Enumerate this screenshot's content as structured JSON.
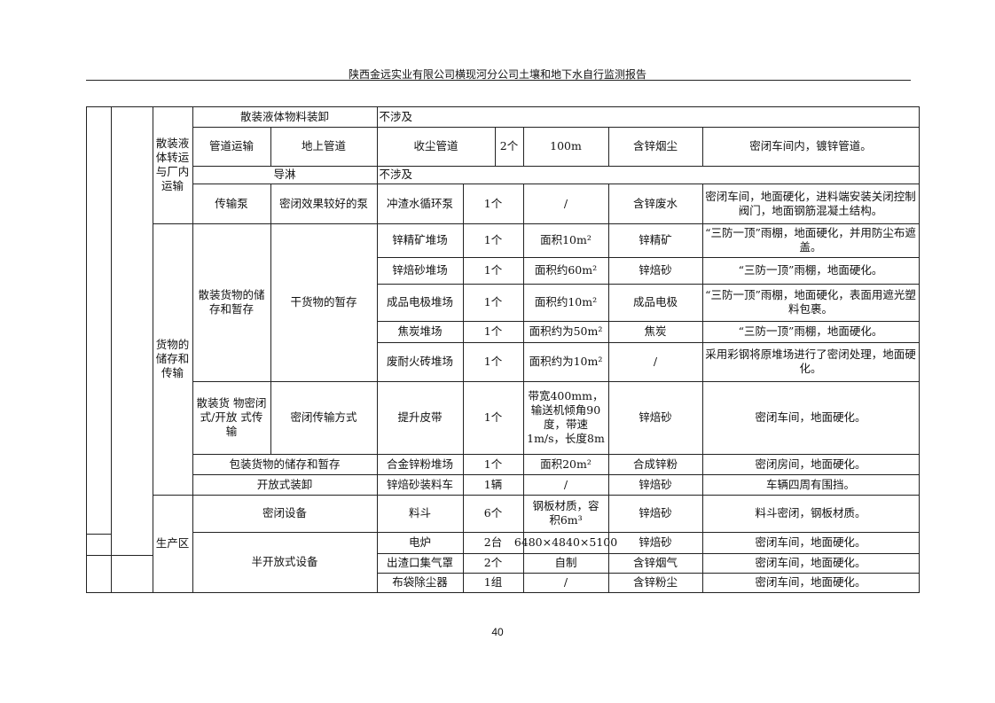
{
  "header": {
    "title": "陕西金远实业有限公司横现河分公司土壤和地下水自行监测报告"
  },
  "page_number": "40",
  "table": {
    "groups": {
      "liquid": "散装液体转运与厂内运输",
      "goods": "货物的储存和传输",
      "production": "生产区"
    },
    "r1": {
      "a": "散装液体物料装卸",
      "b": "不涉及"
    },
    "r2": {
      "a": "管道运输",
      "b": "地上管道",
      "c": "收尘管道",
      "d": "2个",
      "e": "100m",
      "f": "含锌烟尘",
      "g": "密闭车间内，镀锌管道。"
    },
    "r3": {
      "a": "导淋",
      "b": "不涉及"
    },
    "r4": {
      "a": "传输泵",
      "b": "密闭效果较好的泵",
      "c": "冲渣水循环泵",
      "d": "1个",
      "e": "/",
      "f": "含锌废水",
      "g": "密闭车间，地面硬化，进料端安装关闭控制阀门，地面钢筋混凝土结构。"
    },
    "bulk_storage": {
      "a": "散装货物的储存和暂存",
      "b": "干货物的暂存"
    },
    "r5": {
      "c": "锌精矿堆场",
      "d": "1个",
      "e": "面积10m²",
      "f": "锌精矿",
      "g": "“三防一顶”雨棚，地面硬化，并用防尘布遮盖。"
    },
    "r6": {
      "c": "锌焙砂堆场",
      "d": "1个",
      "e": "面积约60m²",
      "f": "锌焙砂",
      "g": "“三防一顶”雨棚，地面硬化。"
    },
    "r7": {
      "c": "成品电极堆场",
      "d": "1个",
      "e": "面积约10m²",
      "f": "成品电极",
      "g": "“三防一顶”雨棚，地面硬化，表面用遮光塑料包裹。"
    },
    "r8": {
      "c": "焦炭堆场",
      "d": "1个",
      "e": "面积约为50m²",
      "f": "焦炭",
      "g": "“三防一顶”雨棚，地面硬化。"
    },
    "r9": {
      "c": "废耐火砖堆场",
      "d": "1个",
      "e": "面积约为10m²",
      "f": "/",
      "g": "采用彩钢将原堆场进行了密闭处理，地面硬化。"
    },
    "r10": {
      "a": "散装货 物密闭式/开放 式传输",
      "b": "密闭传输方式",
      "c": "提升皮带",
      "d": "1个",
      "e": "带宽400mm，输送机倾角90度，带速1m/s，长度8m",
      "f": "锌焙砂",
      "g": "密闭车间，地面硬化。"
    },
    "r11": {
      "a": "包装货物的储存和暂存",
      "c": "合金锌粉堆场",
      "d": "1个",
      "e": "面积20m²",
      "f": "合成锌粉",
      "g": "密闭房间，地面硬化。"
    },
    "r12": {
      "a": "开放式装卸",
      "c": "锌焙砂装料车",
      "d": "1辆",
      "e": "/",
      "f": "锌焙砂",
      "g": "车辆四周有围挡。"
    },
    "r13": {
      "a": "密闭设备",
      "c": "料斗",
      "d": "6个",
      "e": "钢板材质，容 积6m³",
      "f": "锌焙砂",
      "g": "料斗密闭，钢板材质。"
    },
    "semi_open": "半开放式设备",
    "r14": {
      "c": "电炉",
      "d": "2台",
      "e": "6480×4840×5100",
      "f": "锌焙砂",
      "g": "密闭车间，地面硬化。"
    },
    "r15": {
      "c": "出渣口集气罩",
      "d": "2个",
      "e": "自制",
      "f": "含锌烟气",
      "g": "密闭车间，地面硬化。"
    },
    "r16": {
      "c": "布袋除尘器",
      "d": "1组",
      "e": "/",
      "f": "含锌粉尘",
      "g": "密闭车间，地面硬化。"
    }
  }
}
